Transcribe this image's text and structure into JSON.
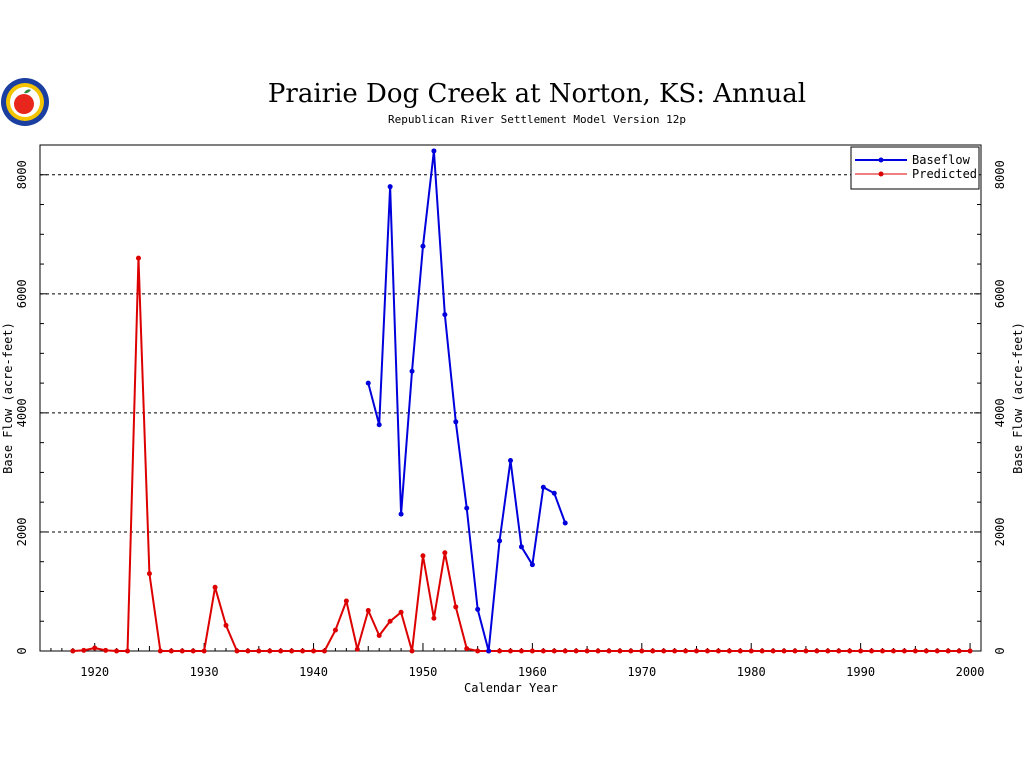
{
  "chart_data": {
    "type": "line",
    "title": "Prairie Dog Creek at Norton, KS: Annual",
    "subtitle": "Republican River Settlement Model Version 12p",
    "xlabel": "Calendar Year",
    "ylabel": "Base Flow (acre-feet)",
    "ylabel_right": "Base Flow (acre-feet)",
    "xlim": [
      1915,
      2001
    ],
    "ylim": [
      0,
      8500
    ],
    "x_ticks": [
      1920,
      1930,
      1940,
      1950,
      1960,
      1970,
      1980,
      1990,
      2000
    ],
    "y_ticks": [
      0,
      2000,
      4000,
      6000,
      8000
    ],
    "y_gridlines": [
      2000,
      4000,
      6000,
      8000
    ],
    "grid": "dashed horizontal",
    "legend_position": "top-right",
    "series": [
      {
        "name": "Baseflow",
        "color": "#0000dd",
        "x": [
          1945,
          1946,
          1947,
          1948,
          1949,
          1950,
          1951,
          1952,
          1953,
          1954,
          1955,
          1956,
          1957,
          1958,
          1959,
          1960,
          1961,
          1962,
          1963
        ],
        "y": [
          4500,
          3800,
          7800,
          2300,
          4700,
          6800,
          8400,
          5650,
          3850,
          2400,
          700,
          0,
          1850,
          3200,
          1750,
          1450,
          2750,
          2650,
          2150
        ]
      },
      {
        "name": "Predicted",
        "color": "#dd0000",
        "x": [
          1918,
          1919,
          1920,
          1921,
          1922,
          1923,
          1924,
          1925,
          1926,
          1927,
          1928,
          1929,
          1930,
          1931,
          1932,
          1933,
          1934,
          1935,
          1936,
          1937,
          1938,
          1939,
          1940,
          1941,
          1942,
          1943,
          1944,
          1945,
          1946,
          1947,
          1948,
          1949,
          1950,
          1951,
          1952,
          1953,
          1954,
          1955,
          1956,
          1957,
          1958,
          1959,
          1960,
          1961,
          1962,
          1963,
          1964,
          1965,
          1966,
          1967,
          1968,
          1969,
          1970,
          1971,
          1972,
          1973,
          1974,
          1975,
          1976,
          1977,
          1978,
          1979,
          1980,
          1981,
          1982,
          1983,
          1984,
          1985,
          1986,
          1987,
          1988,
          1989,
          1990,
          1991,
          1992,
          1993,
          1994,
          1995,
          1996,
          1997,
          1998,
          1999,
          2000
        ],
        "y": [
          0,
          10,
          50,
          10,
          0,
          0,
          6600,
          1300,
          0,
          0,
          0,
          0,
          0,
          1070,
          430,
          0,
          0,
          0,
          0,
          0,
          0,
          0,
          0,
          0,
          350,
          840,
          30,
          680,
          260,
          500,
          650,
          0,
          1600,
          550,
          1650,
          740,
          40,
          0,
          0,
          0,
          0,
          0,
          0,
          0,
          0,
          0,
          0,
          0,
          0,
          0,
          0,
          0,
          0,
          0,
          0,
          0,
          0,
          0,
          0,
          0,
          0,
          0,
          0,
          0,
          0,
          0,
          0,
          0,
          0,
          0,
          0,
          0,
          0,
          0,
          0,
          0,
          0,
          0,
          0,
          0,
          0,
          0,
          0
        ]
      }
    ]
  },
  "logo": {
    "name": "kansas-logo-icon",
    "colors": [
      "#1a3fa0",
      "#f5c400",
      "#e8261b",
      "#2e8b3a"
    ]
  }
}
